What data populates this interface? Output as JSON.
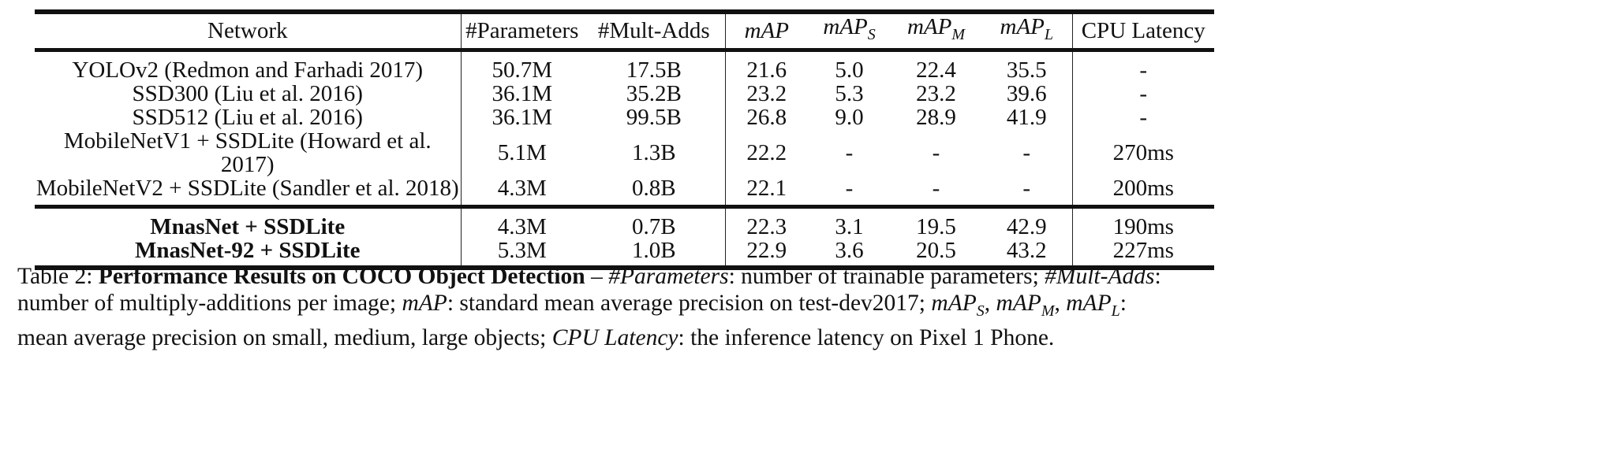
{
  "table": {
    "headers": {
      "network": "Network",
      "params": "#Parameters",
      "madds": "#Mult-Adds",
      "map_base": "mAP",
      "sub_s": "S",
      "sub_m": "M",
      "sub_l": "L",
      "latency": "CPU Latency"
    },
    "baseline_rows": [
      {
        "network": "YOLOv2 (Redmon and Farhadi 2017)",
        "params": "50.7M",
        "madds": "17.5B",
        "map": "21.6",
        "map_s": "5.0",
        "map_m": "22.4",
        "map_l": "35.5",
        "latency": "-"
      },
      {
        "network": "SSD300 (Liu et al. 2016)",
        "params": "36.1M",
        "madds": "35.2B",
        "map": "23.2",
        "map_s": "5.3",
        "map_m": "23.2",
        "map_l": "39.6",
        "latency": "-"
      },
      {
        "network": "SSD512 (Liu et al. 2016)",
        "params": "36.1M",
        "madds": "99.5B",
        "map": "26.8",
        "map_s": "9.0",
        "map_m": "28.9",
        "map_l": "41.9",
        "latency": "-"
      },
      {
        "network": "MobileNetV1 + SSDLite (Howard et al. 2017)",
        "params": "5.1M",
        "madds": "1.3B",
        "map": "22.2",
        "map_s": "-",
        "map_m": "-",
        "map_l": "-",
        "latency": "270ms"
      },
      {
        "network": "MobileNetV2 + SSDLite (Sandler et al. 2018)",
        "params": "4.3M",
        "madds": "0.8B",
        "map": "22.1",
        "map_s": "-",
        "map_m": "-",
        "map_l": "-",
        "latency": "200ms"
      }
    ],
    "mnas_rows": [
      {
        "network": "MnasNet + SSDLite",
        "params": "4.3M",
        "madds": "0.7B",
        "map": "22.3",
        "map_s": "3.1",
        "map_m": "19.5",
        "map_l": "42.9",
        "latency": "190ms"
      },
      {
        "network": "MnasNet-92 + SSDLite",
        "params": "5.3M",
        "madds": "1.0B",
        "map": "22.9",
        "map_s": "3.6",
        "map_m": "20.5",
        "map_l": "43.2",
        "latency": "227ms"
      }
    ]
  },
  "caption": {
    "label": "Table 2: ",
    "title": "Performance Results on COCO Object Detection",
    "dash": " – ",
    "term_params": "#Parameters",
    "desc_params": ": number of trainable parameters; ",
    "term_madds": "#Mult-Adds",
    "desc_madds": ":",
    "line2_start": "number of multiply-additions per image; ",
    "term_map": "mAP",
    "desc_map": ": standard mean average precision on test-dev2017; ",
    "term_map_base": "mAP",
    "sub_s": "S",
    "sub_m": "M",
    "sub_l": "L",
    "comma": ", ",
    "colon": ":",
    "line3_start": "mean average precision on small, medium, large objects; ",
    "term_latency": "CPU Latency",
    "desc_latency": ": the inference latency on Pixel 1 Phone."
  }
}
